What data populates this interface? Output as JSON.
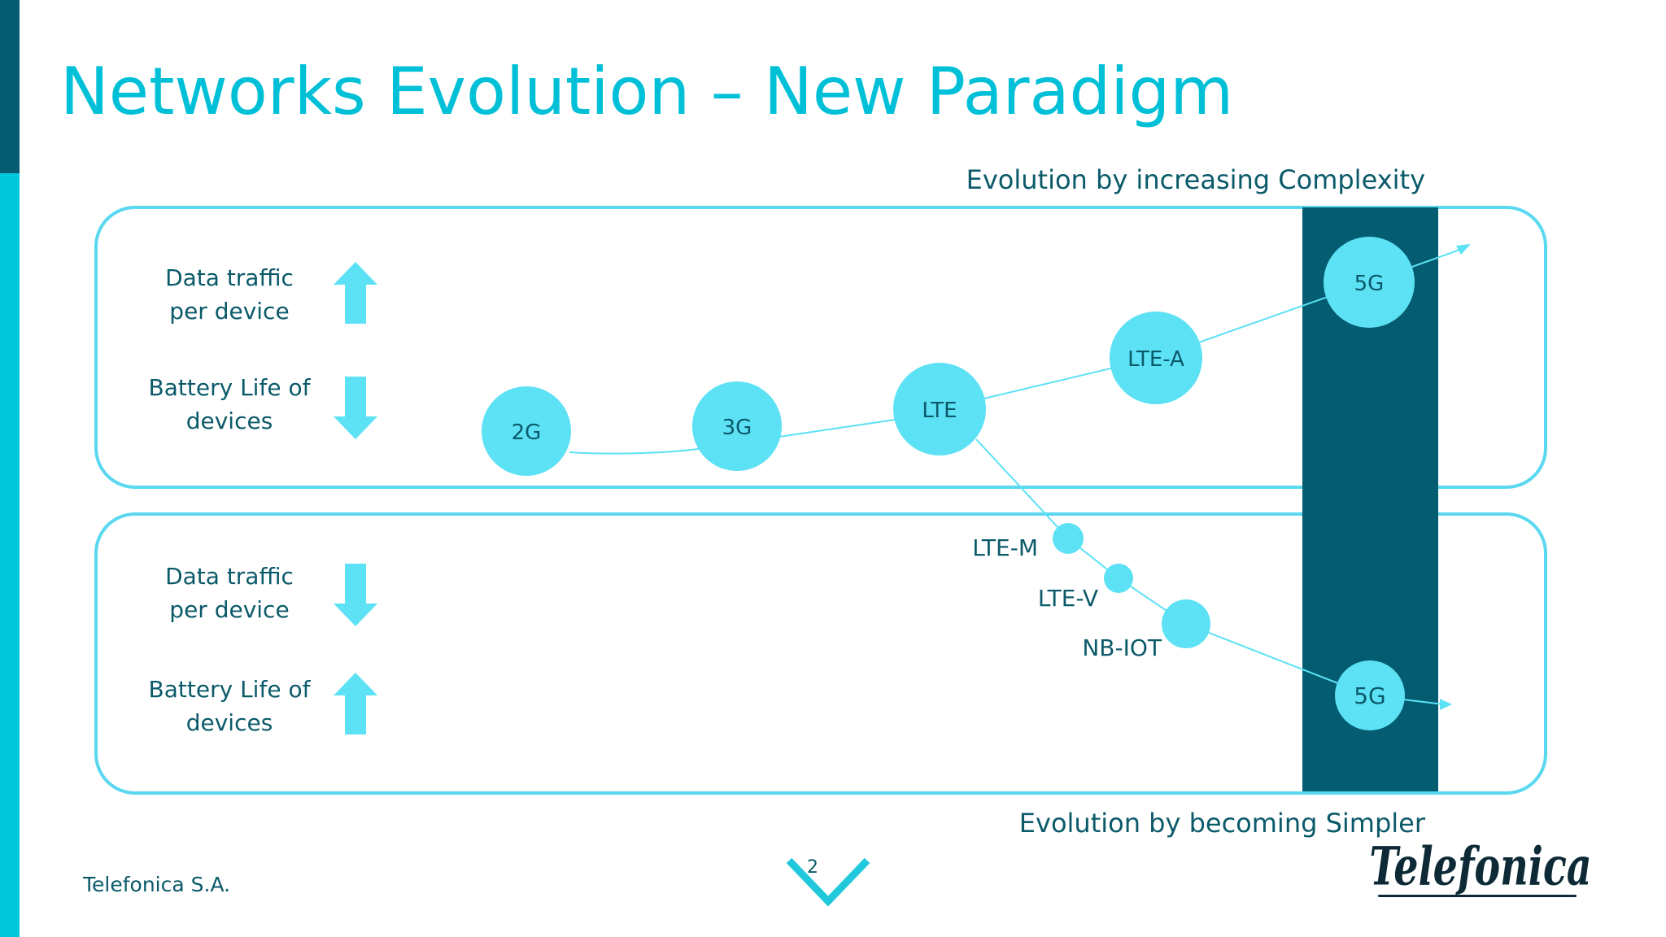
{
  "slide": {
    "title": "Networks Evolution – New Paradigm",
    "top_caption": "Evolution by increasing Complexity",
    "bottom_caption": "Evolution by becoming Simpler",
    "footer_company": "Telefonica S.A.",
    "page_number": "2",
    "logo_text": "Telefonica"
  },
  "top_panel": {
    "metrics": [
      {
        "line1": "Data traffic",
        "line2": "per device",
        "trend": "up"
      },
      {
        "line1": "Battery Life of",
        "line2": "devices",
        "trend": "down"
      }
    ],
    "nodes": [
      "2G",
      "3G",
      "LTE",
      "LTE-A",
      "5G"
    ]
  },
  "bottom_panel": {
    "metrics": [
      {
        "line1": "Data traffic",
        "line2": "per device",
        "trend": "down"
      },
      {
        "line1": "Battery Life of",
        "line2": "devices",
        "trend": "up"
      }
    ],
    "nodes": [
      "LTE-M",
      "LTE-V",
      "NB-IOT",
      "5G"
    ]
  },
  "colors": {
    "title": "#00c0d8",
    "dark": "#035c70",
    "accent": "#00c8dc",
    "node": "#5ce1f5",
    "text": "#0b5a6a"
  }
}
